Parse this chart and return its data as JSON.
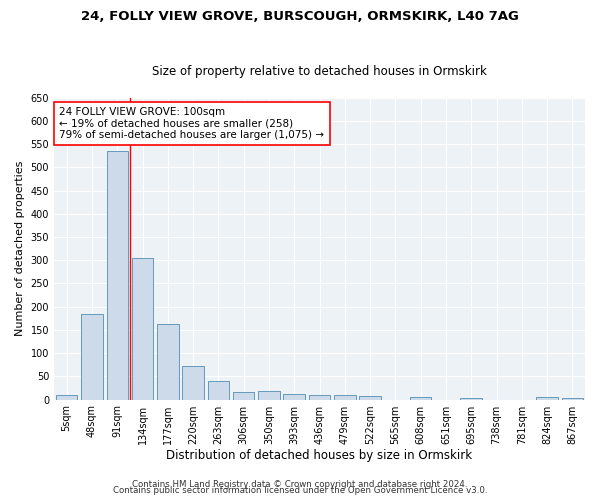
{
  "title1": "24, FOLLY VIEW GROVE, BURSCOUGH, ORMSKIRK, L40 7AG",
  "title2": "Size of property relative to detached houses in Ormskirk",
  "xlabel": "Distribution of detached houses by size in Ormskirk",
  "ylabel": "Number of detached properties",
  "categories": [
    "5sqm",
    "48sqm",
    "91sqm",
    "134sqm",
    "177sqm",
    "220sqm",
    "263sqm",
    "306sqm",
    "350sqm",
    "393sqm",
    "436sqm",
    "479sqm",
    "522sqm",
    "565sqm",
    "608sqm",
    "651sqm",
    "695sqm",
    "738sqm",
    "781sqm",
    "824sqm",
    "867sqm"
  ],
  "values": [
    9,
    184,
    535,
    305,
    163,
    72,
    41,
    17,
    19,
    12,
    10,
    10,
    7,
    0,
    6,
    0,
    3,
    0,
    0,
    5,
    4
  ],
  "bar_color": "#ccdaea",
  "bar_edge_color": "#6699bb",
  "red_line_index": 2,
  "annotation_line1": "24 FOLLY VIEW GROVE: 100sqm",
  "annotation_line2": "← 19% of detached houses are smaller (258)",
  "annotation_line3": "79% of semi-detached houses are larger (1,075) →",
  "footer1": "Contains HM Land Registry data © Crown copyright and database right 2024.",
  "footer2": "Contains public sector information licensed under the Open Government Licence v3.0.",
  "ylim": [
    0,
    650
  ],
  "yticks": [
    0,
    50,
    100,
    150,
    200,
    250,
    300,
    350,
    400,
    450,
    500,
    550,
    600,
    650
  ],
  "bg_color": "#edf2f7",
  "grid_color": "#ffffff",
  "title1_fontsize": 9.5,
  "title2_fontsize": 8.5,
  "xlabel_fontsize": 8.5,
  "ylabel_fontsize": 8,
  "tick_fontsize": 7,
  "annotation_fontsize": 7.5,
  "footer_fontsize": 6.2
}
